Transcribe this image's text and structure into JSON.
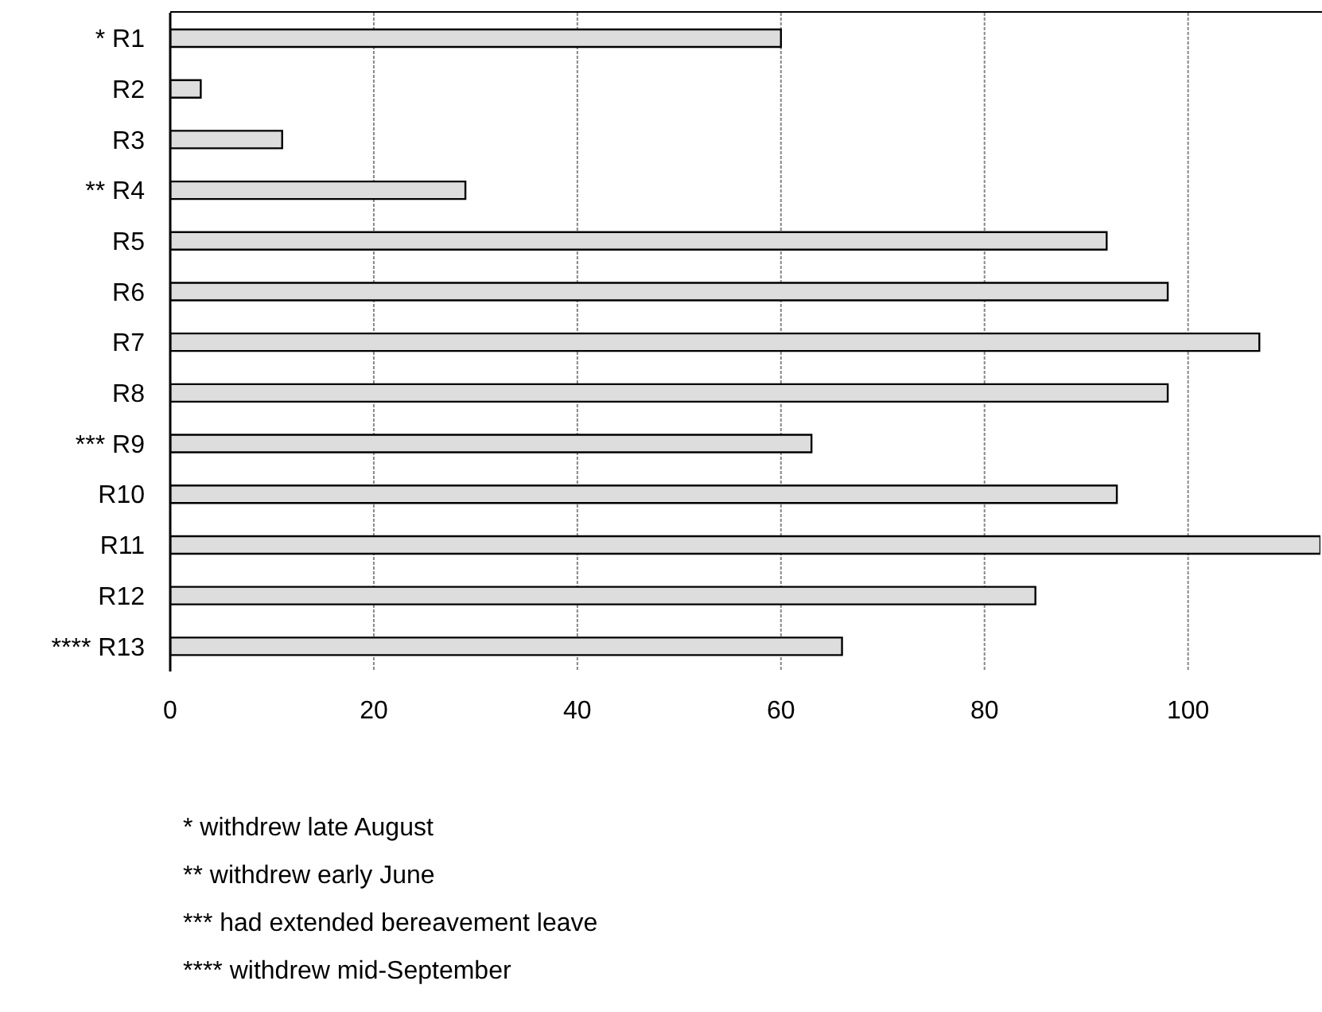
{
  "chart_data": {
    "type": "bar",
    "orientation": "horizontal",
    "categories": [
      "* R1",
      "R2",
      "R3",
      "** R4",
      "R5",
      "R6",
      "R7",
      "R8",
      "*** R9",
      "R10",
      "R11",
      "R12",
      "**** R13"
    ],
    "values": [
      60,
      3,
      11,
      29,
      92,
      98,
      107,
      98,
      63,
      93,
      113,
      85,
      66
    ],
    "color": "#dddddd",
    "xlim": [
      0,
      113
    ],
    "xticks": [
      0,
      20,
      40,
      60,
      80,
      100
    ],
    "grid": "x",
    "annotations": [
      "* withdrew late August",
      "** withdrew early June",
      "*** had extended bereavement leave",
      "**** withdrew mid-September"
    ]
  }
}
